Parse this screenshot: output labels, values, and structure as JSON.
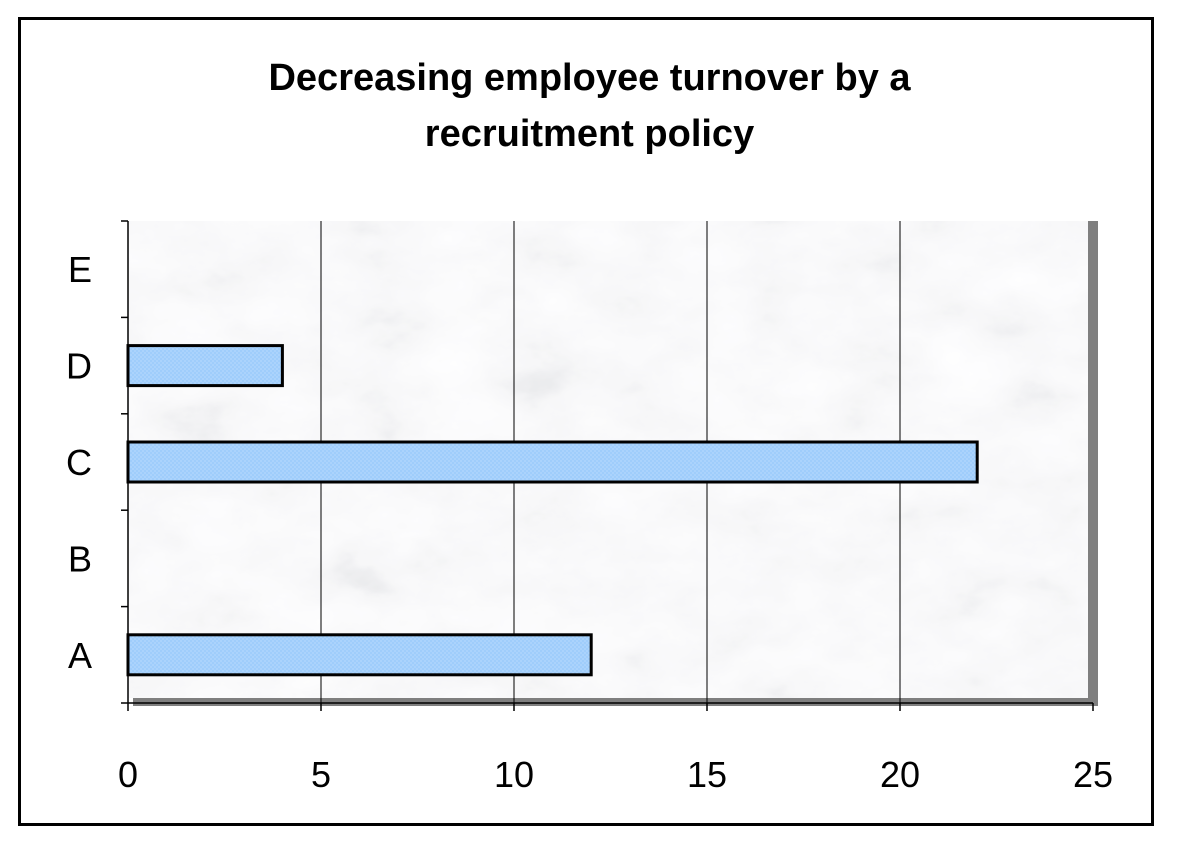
{
  "chart_data": {
    "type": "bar",
    "orientation": "horizontal",
    "title": "Decreasing employee turnover by a recruitment policy",
    "title_lines": [
      "Decreasing employee turnover by a",
      "recruitment policy"
    ],
    "categories": [
      "A",
      "B",
      "C",
      "D",
      "E"
    ],
    "values": [
      12,
      0,
      22,
      4,
      0
    ],
    "xlim": [
      0,
      25
    ],
    "xticks": [
      0,
      5,
      10,
      15,
      20,
      25
    ],
    "grid": "vertical",
    "legend": "none",
    "bar_color": "#99ccff",
    "bar_edge": "#000000",
    "plot_background": "marble texture (light gray/white)"
  }
}
